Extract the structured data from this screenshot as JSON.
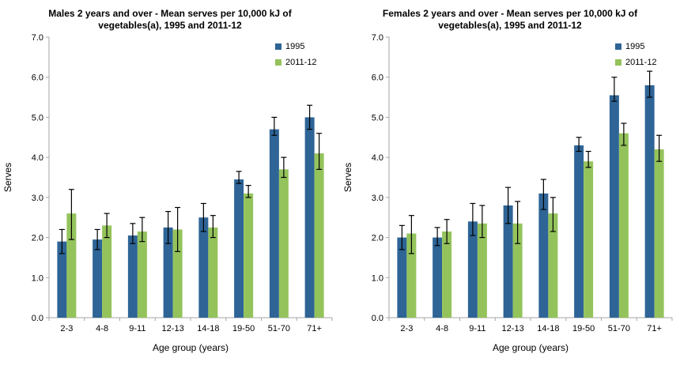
{
  "page": {
    "background": "#FFFFFF"
  },
  "colors": {
    "series_1995": "#2E6496",
    "series_2011": "#94C35C",
    "axis": "#A6A6A6",
    "error_bar": "#000000",
    "text": "#000000"
  },
  "chart_data": [
    {
      "type": "bar",
      "title": "Males 2 years and over - Mean serves per 10,000 kJ of vegetables(a), 1995 and 2011-12",
      "xlabel": "Age group (years)",
      "ylabel": "Serves",
      "ylim": [
        0,
        7
      ],
      "ytick_step": 1,
      "grid": false,
      "legend_position": "top-right",
      "categories": [
        "2-3",
        "4-8",
        "9-11",
        "12-13",
        "14-18",
        "19-50",
        "51-70",
        "71+"
      ],
      "series": [
        {
          "name": "1995",
          "color": "#2E6496",
          "values": [
            1.9,
            1.95,
            2.05,
            2.25,
            2.5,
            3.45,
            4.7,
            5.0
          ],
          "err_low": [
            1.6,
            1.7,
            1.85,
            1.85,
            2.15,
            3.35,
            4.55,
            4.7
          ],
          "err_high": [
            2.2,
            2.2,
            2.35,
            2.65,
            2.85,
            3.65,
            5.0,
            5.3
          ]
        },
        {
          "name": "2011-12",
          "color": "#94C35C",
          "values": [
            2.6,
            2.3,
            2.15,
            2.2,
            2.25,
            3.1,
            3.7,
            4.1
          ],
          "err_low": [
            1.95,
            2.0,
            1.9,
            1.65,
            2.0,
            3.0,
            3.5,
            3.7
          ],
          "err_high": [
            3.2,
            2.6,
            2.5,
            2.75,
            2.55,
            3.3,
            4.0,
            4.6
          ]
        }
      ]
    },
    {
      "type": "bar",
      "title": "Females 2 years and over - Mean serves per 10,000 kJ of vegetables(a), 1995 and 2011-12",
      "xlabel": "Age group (years)",
      "ylabel": "Serves",
      "ylim": [
        0,
        7
      ],
      "ytick_step": 1,
      "grid": false,
      "legend_position": "top-right",
      "categories": [
        "2-3",
        "4-8",
        "9-11",
        "12-13",
        "14-18",
        "19-50",
        "51-70",
        "71+"
      ],
      "series": [
        {
          "name": "1995",
          "color": "#2E6496",
          "values": [
            2.0,
            2.0,
            2.4,
            2.8,
            3.1,
            4.3,
            5.55,
            5.8
          ],
          "err_low": [
            1.7,
            1.8,
            2.05,
            2.35,
            2.7,
            4.15,
            5.4,
            5.5
          ],
          "err_high": [
            2.3,
            2.25,
            2.85,
            3.25,
            3.45,
            4.5,
            6.0,
            6.15
          ]
        },
        {
          "name": "2011-12",
          "color": "#94C35C",
          "values": [
            2.1,
            2.15,
            2.35,
            2.35,
            2.6,
            3.9,
            4.6,
            4.2
          ],
          "err_low": [
            1.6,
            1.85,
            2.0,
            1.85,
            2.15,
            3.75,
            4.3,
            3.9
          ],
          "err_high": [
            2.55,
            2.45,
            2.8,
            2.9,
            3.0,
            4.15,
            4.85,
            4.55
          ]
        }
      ]
    }
  ]
}
